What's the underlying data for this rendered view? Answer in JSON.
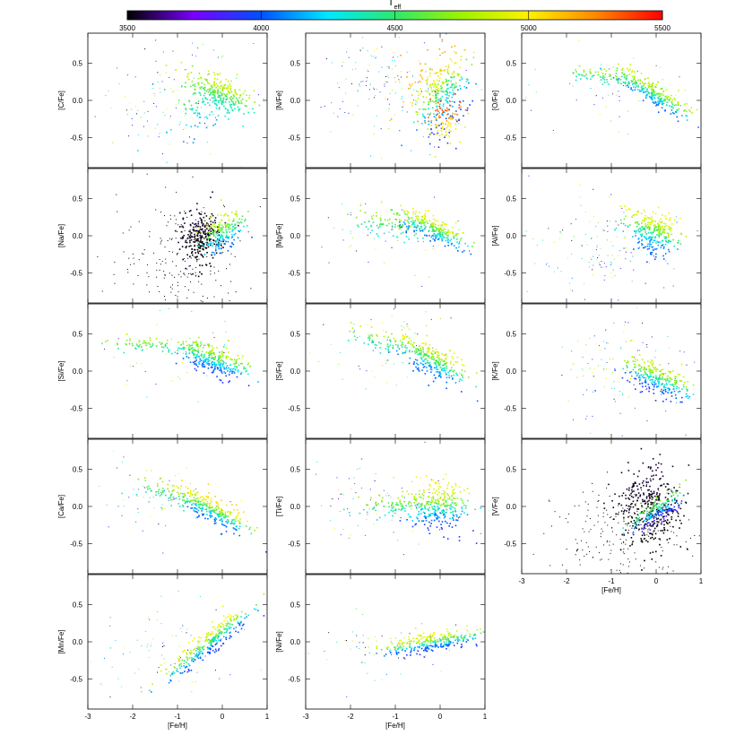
{
  "colorbar": {
    "title": "T",
    "title_sub": "eff",
    "min": 3500,
    "max": 5500,
    "ticks": [
      3500,
      4000,
      4500,
      5000,
      5500
    ],
    "colors": [
      "#000000",
      "#7a00ff",
      "#0050ff",
      "#00e8ff",
      "#2ee86c",
      "#9ef200",
      "#fff200",
      "#ff8800",
      "#ff0000"
    ]
  },
  "chart_data": [
    {
      "type": "scatter",
      "ylabel": "[C/Fe]",
      "xlim": [
        -3,
        1
      ],
      "ylim": [
        -0.9,
        0.9
      ],
      "yticks": [
        "0.5",
        "0.0",
        "-0.5"
      ],
      "xticks": [],
      "blobs": [
        {
          "x": -0.1,
          "y": 0.1,
          "sx": 0.35,
          "sy": 0.12,
          "tilt": -0.2,
          "n": 260,
          "teff": [
            4300,
            4900
          ]
        },
        {
          "x": -0.6,
          "y": -0.1,
          "sx": 0.35,
          "sy": 0.18,
          "tilt": 0.3,
          "n": 60,
          "teff": [
            4100,
            4700
          ]
        }
      ],
      "halo": {
        "x": -1.2,
        "y": 0.0,
        "sx": 0.8,
        "sy": 0.4,
        "n": 120
      }
    },
    {
      "type": "scatter",
      "ylabel": "[N/Fe]",
      "xlim": [
        -3,
        1
      ],
      "ylim": [
        -0.9,
        0.9
      ],
      "yticks": [
        "0.5",
        "0.0",
        "-0.5"
      ],
      "xticks": [],
      "blobs": [
        {
          "x": 0.0,
          "y": 0.1,
          "sx": 0.35,
          "sy": 0.25,
          "tilt": 0.5,
          "n": 300,
          "teff": [
            3900,
            5200
          ]
        },
        {
          "x": 0.1,
          "y": -0.25,
          "sx": 0.25,
          "sy": 0.15,
          "tilt": 0.2,
          "n": 80,
          "teff": [
            4900,
            5450
          ]
        }
      ],
      "halo": {
        "x": -1.3,
        "y": 0.25,
        "sx": 0.8,
        "sy": 0.35,
        "n": 160
      }
    },
    {
      "type": "scatter",
      "ylabel": "[O/Fe]",
      "xlim": [
        -3,
        1
      ],
      "ylim": [
        -0.9,
        0.9
      ],
      "yticks": [
        "0.5",
        "0.0",
        "-0.5"
      ],
      "xticks": [],
      "blobs": [
        {
          "x": -0.1,
          "y": 0.1,
          "sx": 0.4,
          "sy": 0.07,
          "tilt": -0.35,
          "n": 260,
          "teff": [
            4000,
            4900
          ]
        },
        {
          "x": -1.0,
          "y": 0.3,
          "sx": 0.5,
          "sy": 0.05,
          "tilt": -0.1,
          "n": 80,
          "teff": [
            4300,
            4800
          ]
        }
      ],
      "halo": {
        "x": -0.8,
        "y": 0.2,
        "sx": 0.8,
        "sy": 0.25,
        "n": 50
      }
    },
    {
      "type": "scatter",
      "ylabel": "[Na/Fe]",
      "xlim": [
        -3,
        1
      ],
      "ylim": [
        -0.9,
        0.9
      ],
      "yticks": [
        "0.5",
        "0.0",
        "-0.5"
      ],
      "xticks": [],
      "blobs": [
        {
          "x": -0.5,
          "y": 0.0,
          "sx": 0.22,
          "sy": 0.18,
          "tilt": 0.0,
          "n": 260,
          "teff": [
            3500,
            3550
          ]
        },
        {
          "x": 0.0,
          "y": 0.05,
          "sx": 0.25,
          "sy": 0.12,
          "tilt": 0.3,
          "n": 200,
          "teff": [
            4000,
            4900
          ]
        }
      ],
      "halo": {
        "x": -0.9,
        "y": -0.3,
        "sx": 0.7,
        "sy": 0.4,
        "n": 200,
        "black": true
      }
    },
    {
      "type": "scatter",
      "ylabel": "[Mg/Fe]",
      "xlim": [
        -3,
        1
      ],
      "ylim": [
        -0.9,
        0.9
      ],
      "yticks": [
        "0.5",
        "0.0",
        "-0.5"
      ],
      "xticks": [],
      "blobs": [
        {
          "x": -0.2,
          "y": 0.1,
          "sx": 0.4,
          "sy": 0.08,
          "tilt": -0.25,
          "n": 260,
          "teff": [
            4000,
            5000
          ]
        },
        {
          "x": -1.1,
          "y": 0.15,
          "sx": 0.5,
          "sy": 0.08,
          "tilt": -0.1,
          "n": 80,
          "teff": [
            4300,
            4800
          ]
        }
      ],
      "halo": {
        "x": -1.3,
        "y": 0.1,
        "sx": 0.8,
        "sy": 0.25,
        "n": 60
      }
    },
    {
      "type": "scatter",
      "ylabel": "[Al/Fe]",
      "xlim": [
        -3,
        1
      ],
      "ylim": [
        -0.9,
        0.9
      ],
      "yticks": [
        "0.5",
        "0.0",
        "-0.5"
      ],
      "xticks": [],
      "blobs": [
        {
          "x": -0.1,
          "y": 0.05,
          "sx": 0.3,
          "sy": 0.14,
          "tilt": -0.2,
          "n": 280,
          "teff": [
            4000,
            5000
          ]
        }
      ],
      "halo": {
        "x": -1.2,
        "y": -0.15,
        "sx": 0.7,
        "sy": 0.3,
        "n": 140
      }
    },
    {
      "type": "scatter",
      "ylabel": "[Si/Fe]",
      "xlim": [
        -3,
        1
      ],
      "ylim": [
        -0.9,
        0.9
      ],
      "yticks": [
        "0.5",
        "0.0",
        "-0.5"
      ],
      "xticks": [],
      "blobs": [
        {
          "x": -0.2,
          "y": 0.15,
          "sx": 0.35,
          "sy": 0.1,
          "tilt": -0.2,
          "n": 280,
          "teff": [
            3900,
            4900
          ]
        },
        {
          "x": -1.4,
          "y": 0.35,
          "sx": 0.6,
          "sy": 0.05,
          "tilt": 0.0,
          "n": 90,
          "teff": [
            4300,
            4800
          ]
        }
      ],
      "halo": {
        "x": -1.0,
        "y": 0.2,
        "sx": 0.8,
        "sy": 0.25,
        "n": 50
      }
    },
    {
      "type": "scatter",
      "ylabel": "[S/Fe]",
      "xlim": [
        -3,
        1
      ],
      "ylim": [
        -0.9,
        0.9
      ],
      "yticks": [
        "0.5",
        "0.0",
        "-0.5"
      ],
      "xticks": [],
      "blobs": [
        {
          "x": -0.2,
          "y": 0.15,
          "sx": 0.4,
          "sy": 0.1,
          "tilt": -0.3,
          "n": 260,
          "teff": [
            4000,
            5000
          ]
        },
        {
          "x": -1.1,
          "y": 0.4,
          "sx": 0.55,
          "sy": 0.08,
          "tilt": -0.15,
          "n": 80,
          "teff": [
            4300,
            4900
          ]
        }
      ],
      "halo": {
        "x": -1.3,
        "y": 0.3,
        "sx": 0.8,
        "sy": 0.3,
        "n": 60
      }
    },
    {
      "type": "scatter",
      "ylabel": "[K/Fe]",
      "xlim": [
        -3,
        1
      ],
      "ylim": [
        -0.9,
        0.9
      ],
      "yticks": [
        "0.5",
        "0.0",
        "-0.5"
      ],
      "xticks": [],
      "blobs": [
        {
          "x": 0.0,
          "y": -0.1,
          "sx": 0.35,
          "sy": 0.1,
          "tilt": -0.25,
          "n": 260,
          "teff": [
            3900,
            4900
          ]
        }
      ],
      "halo": {
        "x": -0.8,
        "y": 0.0,
        "sx": 0.8,
        "sy": 0.35,
        "n": 130
      }
    },
    {
      "type": "scatter",
      "ylabel": "[Ca/Fe]",
      "xlim": [
        -3,
        1
      ],
      "ylim": [
        -0.9,
        0.9
      ],
      "yticks": [
        "0.5",
        "0.0",
        "-0.5"
      ],
      "xticks": [],
      "blobs": [
        {
          "x": -0.2,
          "y": -0.05,
          "sx": 0.4,
          "sy": 0.08,
          "tilt": -0.3,
          "n": 260,
          "teff": [
            4000,
            5100
          ]
        },
        {
          "x": -1.1,
          "y": 0.15,
          "sx": 0.5,
          "sy": 0.07,
          "tilt": -0.2,
          "n": 80,
          "teff": [
            4300,
            4800
          ]
        }
      ],
      "halo": {
        "x": -1.4,
        "y": 0.15,
        "sx": 0.7,
        "sy": 0.25,
        "n": 60
      }
    },
    {
      "type": "scatter",
      "ylabel": "[Ti/Fe]",
      "xlim": [
        -3,
        1
      ],
      "ylim": [
        -0.9,
        0.9
      ],
      "yticks": [
        "0.5",
        "0.0",
        "-0.5"
      ],
      "xticks": [],
      "blobs": [
        {
          "x": -0.1,
          "y": 0.0,
          "sx": 0.35,
          "sy": 0.16,
          "tilt": 0.0,
          "n": 280,
          "teff": [
            3900,
            5000
          ]
        },
        {
          "x": -0.9,
          "y": 0.0,
          "sx": 0.45,
          "sy": 0.08,
          "tilt": 0.0,
          "n": 80,
          "teff": [
            4200,
            4800
          ]
        }
      ],
      "halo": {
        "x": -1.4,
        "y": 0.05,
        "sx": 0.8,
        "sy": 0.3,
        "n": 90
      }
    },
    {
      "type": "scatter",
      "ylabel": "[V/Fe]",
      "xlim": [
        -3,
        1
      ],
      "ylim": [
        -0.9,
        0.9
      ],
      "yticks": [
        "0.5",
        "0.0",
        "-0.5"
      ],
      "xticks": [
        "-3",
        "-2",
        "-1",
        "0",
        "1"
      ],
      "xlabel": "[Fe/H]",
      "blobs": [
        {
          "x": -0.15,
          "y": 0.0,
          "sx": 0.35,
          "sy": 0.28,
          "tilt": 0.0,
          "n": 360,
          "teff": [
            3500,
            3550
          ]
        },
        {
          "x": 0.0,
          "y": -0.05,
          "sx": 0.3,
          "sy": 0.08,
          "tilt": 0.35,
          "n": 180,
          "teff": [
            3800,
            4700
          ]
        }
      ],
      "halo": {
        "x": -0.7,
        "y": -0.4,
        "sx": 0.8,
        "sy": 0.35,
        "n": 220,
        "black": true
      }
    },
    {
      "type": "scatter",
      "ylabel": "[Mn/Fe]",
      "xlim": [
        -3,
        1
      ],
      "ylim": [
        -0.9,
        0.9
      ],
      "yticks": [
        "0.5",
        "0.0",
        "-0.5"
      ],
      "xticks": [
        "-3",
        "-2",
        "-1",
        "0",
        "1"
      ],
      "xlabel": "[Fe/H]",
      "blobs": [
        {
          "x": -0.3,
          "y": 0.0,
          "sx": 0.55,
          "sy": 0.08,
          "tilt": 0.45,
          "n": 300,
          "teff": [
            3900,
            5000
          ]
        }
      ],
      "halo": {
        "x": -1.2,
        "y": -0.1,
        "sx": 0.8,
        "sy": 0.3,
        "n": 80
      }
    },
    {
      "type": "scatter",
      "ylabel": "[Ni/Fe]",
      "xlim": [
        -3,
        1
      ],
      "ylim": [
        -0.9,
        0.9
      ],
      "yticks": [
        "0.5",
        "0.0",
        "-0.5"
      ],
      "xticks": [
        "-3",
        "-2",
        "-1",
        "0",
        "1"
      ],
      "xlabel": "[Fe/H]",
      "blobs": [
        {
          "x": -0.2,
          "y": 0.0,
          "sx": 0.55,
          "sy": 0.06,
          "tilt": 0.1,
          "n": 280,
          "teff": [
            3900,
            5000
          ]
        }
      ],
      "halo": {
        "x": -1.2,
        "y": -0.05,
        "sx": 0.8,
        "sy": 0.2,
        "n": 70
      }
    }
  ]
}
